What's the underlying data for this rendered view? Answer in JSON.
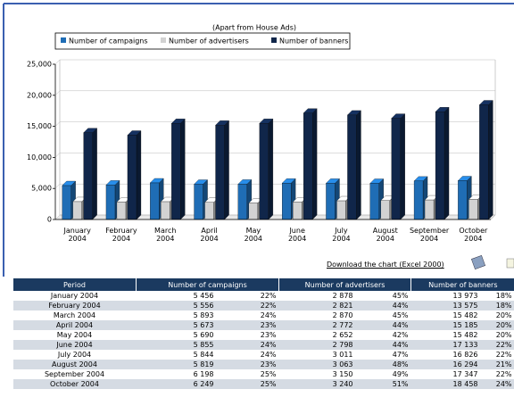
{
  "chart_data": {
    "type": "bar3d",
    "title": "(Apart from House Ads)",
    "categories": [
      "January 2004",
      "February 2004",
      "March 2004",
      "April 2004",
      "May 2004",
      "June 2004",
      "July 2004",
      "August 2004",
      "September 2004",
      "October 2004"
    ],
    "series": [
      {
        "name": "Number of campaigns",
        "color": "#1f6db5",
        "values": [
          5456,
          5556,
          5893,
          5673,
          5690,
          5855,
          5844,
          5819,
          6198,
          6249
        ]
      },
      {
        "name": "Number of advertisers",
        "color": "#d2d2d2",
        "values": [
          2878,
          2821,
          2870,
          2772,
          2652,
          2798,
          3011,
          3063,
          3150,
          3240
        ]
      },
      {
        "name": "Number of banners",
        "color": "#10264a",
        "values": [
          13973,
          13575,
          15482,
          15185,
          15482,
          17133,
          16826,
          16294,
          17347,
          18458
        ]
      }
    ],
    "ylim": [
      0,
      25000
    ],
    "yticks": [
      0,
      {
        "value": 5000,
        "label": "5,000"
      },
      {
        "value": 10000,
        "label": "10,000"
      },
      {
        "value": 15000,
        "label": "15,000"
      },
      {
        "value": 20000,
        "label": "20,000"
      },
      {
        "value": 25000,
        "label": "25,000"
      }
    ],
    "grid": true
  },
  "download": "Download the chart (Excel 2000)",
  "table": {
    "header": [
      "Period",
      "Number of campaigns",
      "Number of advertisers",
      "Number of banners"
    ],
    "rows": [
      [
        "January 2004",
        "5 456",
        "22%",
        "2 878",
        "45%",
        "13 973",
        "18%"
      ],
      [
        "February 2004",
        "5 556",
        "22%",
        "2 821",
        "44%",
        "13 575",
        "18%"
      ],
      [
        "March 2004",
        "5 893",
        "24%",
        "2 870",
        "45%",
        "15 482",
        "20%"
      ],
      [
        "April 2004",
        "5 673",
        "23%",
        "2 772",
        "44%",
        "15 185",
        "20%"
      ],
      [
        "May 2004",
        "5 690",
        "23%",
        "2 652",
        "42%",
        "15 482",
        "20%"
      ],
      [
        "June 2004",
        "5 855",
        "24%",
        "2 798",
        "44%",
        "17 133",
        "22%"
      ],
      [
        "July 2004",
        "5 844",
        "24%",
        "3 011",
        "47%",
        "16 826",
        "22%"
      ],
      [
        "August 2004",
        "5 819",
        "23%",
        "3 063",
        "48%",
        "16 294",
        "21%"
      ],
      [
        "September 2004",
        "6 198",
        "25%",
        "3 150",
        "49%",
        "17 347",
        "22%"
      ],
      [
        "October 2004",
        "6 249",
        "25%",
        "3 240",
        "51%",
        "18 458",
        "24%"
      ]
    ]
  }
}
